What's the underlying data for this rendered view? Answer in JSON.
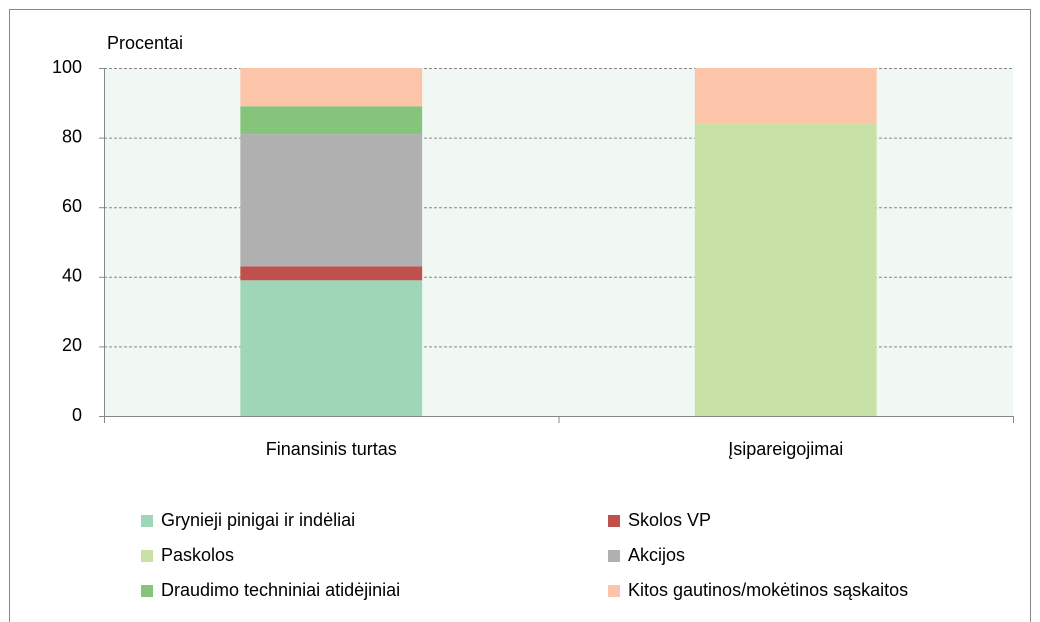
{
  "chart_data": {
    "type": "stacked_bar",
    "ylabel": "Procentai",
    "categories": [
      "Finansinis turtas",
      "Įsipareigojimai"
    ],
    "series": [
      {
        "name": "Grynieji pinigai ir indėliai",
        "color": "#9fd6b8",
        "values": [
          39,
          0
        ]
      },
      {
        "name": "Skolos VP",
        "color": "#c0504d",
        "values": [
          4,
          0
        ]
      },
      {
        "name": "Paskolos",
        "color": "#c8e2a6",
        "values": [
          0,
          84
        ]
      },
      {
        "name": "Akcijos",
        "color": "#b0b0b0",
        "values": [
          38,
          0
        ]
      },
      {
        "name": "Draudimo techniniai atidėjiniai",
        "color": "#86c47c",
        "values": [
          8,
          0
        ]
      },
      {
        "name": "Kitos gautinos/mokėtinos sąskaitos",
        "color": "#fcc5a9",
        "values": [
          11,
          16
        ]
      }
    ],
    "ylim": [
      0,
      100
    ],
    "yticks": [
      0,
      20,
      40,
      60,
      80,
      100
    ],
    "grid": true
  }
}
